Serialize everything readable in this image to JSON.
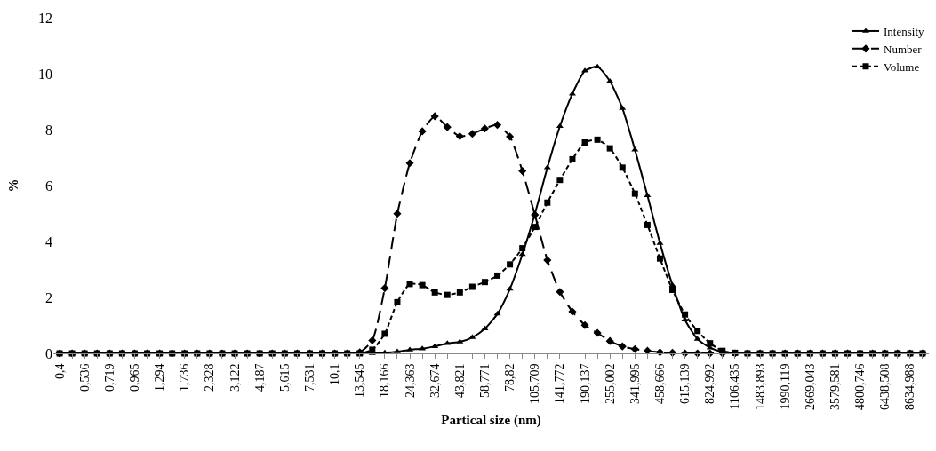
{
  "chart_data": {
    "type": "line",
    "xlabel": "Partical size (nm)",
    "ylabel": "%",
    "categories": [
      "0,4",
      null,
      "0,536",
      null,
      "0,719",
      null,
      "0,965",
      null,
      "1,294",
      null,
      "1,736",
      null,
      "2,328",
      null,
      "3,122",
      null,
      "4,187",
      null,
      "5,615",
      null,
      "7,531",
      null,
      "10,1",
      null,
      "13,545",
      null,
      "18,166",
      null,
      "24,363",
      null,
      "32,674",
      null,
      "43,821",
      null,
      "58,771",
      null,
      "78,82",
      null,
      "105,709",
      null,
      "141,772",
      null,
      "190,137",
      null,
      "255,002",
      null,
      "341,995",
      null,
      "458,666",
      null,
      "615,139",
      null,
      "824,992",
      null,
      "1106,435",
      null,
      "1483,893",
      null,
      "1990,119",
      null,
      "2669,043",
      null,
      "3579,581",
      null,
      "4800,746",
      null,
      "6438,508",
      null,
      "8634,988",
      null
    ],
    "series": [
      {
        "name": "Intensity",
        "color": "#000000",
        "marker": "triangle",
        "line_style": "solid",
        "values": [
          0,
          0,
          0,
          0,
          0,
          0,
          0,
          0,
          0,
          0,
          0,
          0,
          0,
          0,
          0,
          0,
          0,
          0,
          0,
          0,
          0,
          0,
          0,
          0,
          0,
          0,
          0.02,
          0.06,
          0.13,
          0.17,
          0.25,
          0.36,
          0.41,
          0.57,
          0.88,
          1.41,
          2.3,
          3.54,
          4.99,
          6.64,
          8.12,
          9.28,
          10.1,
          10.25,
          9.73,
          8.76,
          7.28,
          5.64,
          3.94,
          2.44,
          1.2,
          0.51,
          0.2,
          0.05,
          0,
          0,
          0,
          0,
          0,
          0,
          0,
          0,
          0,
          0,
          0,
          0,
          0,
          0,
          0,
          0
        ]
      },
      {
        "name": "Number",
        "color": "#000000",
        "marker": "diamond",
        "line_style": "dashed",
        "values": [
          0,
          0,
          0,
          0,
          0,
          0,
          0,
          0,
          0,
          0,
          0,
          0,
          0,
          0,
          0,
          0,
          0,
          0,
          0,
          0,
          0,
          0,
          0,
          0,
          0.04,
          0.46,
          2.33,
          4.99,
          6.8,
          7.94,
          8.48,
          8.09,
          7.76,
          7.85,
          8.04,
          8.17,
          7.75,
          6.52,
          4.95,
          3.33,
          2.2,
          1.49,
          1.01,
          0.73,
          0.44,
          0.25,
          0.15,
          0.09,
          0.04,
          0.02,
          0,
          0,
          0,
          0,
          0,
          0,
          0,
          0,
          0,
          0,
          0,
          0,
          0,
          0,
          0,
          0,
          0,
          0,
          0,
          0
        ]
      },
      {
        "name": "Volume",
        "color": "#000000",
        "marker": "square",
        "line_style": "dotted",
        "values": [
          0,
          0,
          0,
          0,
          0,
          0,
          0,
          0,
          0,
          0,
          0,
          0,
          0,
          0,
          0,
          0,
          0,
          0,
          0,
          0,
          0,
          0,
          0,
          0,
          0,
          0.13,
          0.7,
          1.83,
          2.48,
          2.44,
          2.18,
          2.09,
          2.18,
          2.38,
          2.55,
          2.78,
          3.18,
          3.76,
          4.52,
          5.39,
          6.2,
          6.94,
          7.54,
          7.64,
          7.33,
          6.64,
          5.71,
          4.59,
          3.39,
          2.27,
          1.39,
          0.8,
          0.36,
          0.09,
          0.02,
          0,
          0,
          0,
          0,
          0,
          0,
          0,
          0,
          0,
          0,
          0,
          0,
          0,
          0,
          0
        ]
      }
    ],
    "ylim": [
      0,
      12
    ],
    "yticks": [
      0,
      2,
      4,
      6,
      8,
      10,
      12
    ],
    "grid": false,
    "legend": "top right"
  }
}
